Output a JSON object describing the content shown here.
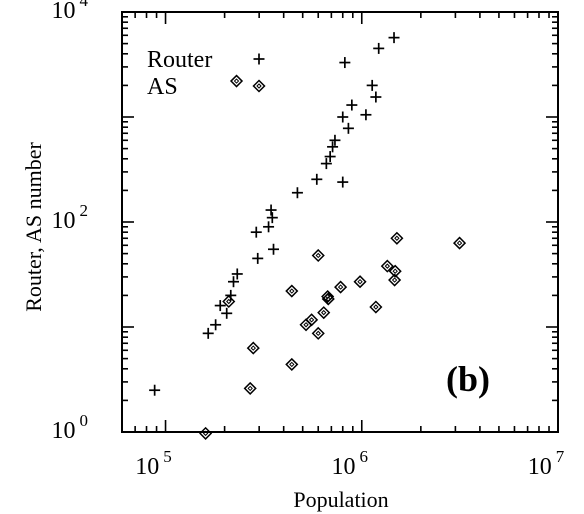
{
  "chart_data": {
    "type": "scatter",
    "panel_label": "(b)",
    "xlabel": "Population",
    "ylabel": "Router, AS number",
    "x_scale": "log",
    "y_scale": "log",
    "xlim": [
      60000,
      10000000
    ],
    "ylim": [
      1,
      10000
    ],
    "x_ticks": [
      {
        "value": 100000,
        "base": "10",
        "exp": "5"
      },
      {
        "value": 1000000,
        "base": "10",
        "exp": "6"
      },
      {
        "value": 10000000,
        "base": "10",
        "exp": "7"
      }
    ],
    "y_ticks": [
      {
        "value": 1,
        "base": "10",
        "exp": "0"
      },
      {
        "value": 100,
        "base": "10",
        "exp": "2"
      },
      {
        "value": 10000,
        "base": "10",
        "exp": "4"
      }
    ],
    "legend_position": "top-left",
    "series": [
      {
        "name": "Router",
        "marker": "plus",
        "points": [
          [
            88000,
            2.5
          ],
          [
            165000,
            8.7
          ],
          [
            180000,
            10.5
          ],
          [
            190000,
            16
          ],
          [
            205000,
            13.5
          ],
          [
            215000,
            20
          ],
          [
            222000,
            27
          ],
          [
            232000,
            32
          ],
          [
            290000,
            80
          ],
          [
            295000,
            45
          ],
          [
            335000,
            90
          ],
          [
            345000,
            130
          ],
          [
            350000,
            110
          ],
          [
            355000,
            55
          ],
          [
            470000,
            190
          ],
          [
            590000,
            255
          ],
          [
            660000,
            360
          ],
          [
            690000,
            420
          ],
          [
            710000,
            520
          ],
          [
            730000,
            600
          ],
          [
            800000,
            1000
          ],
          [
            800000,
            240
          ],
          [
            820000,
            3300
          ],
          [
            855000,
            780
          ],
          [
            890000,
            1300
          ],
          [
            1050000,
            1050
          ],
          [
            1130000,
            2000
          ],
          [
            1180000,
            1550
          ],
          [
            1220000,
            4500
          ],
          [
            1460000,
            5700
          ]
        ]
      },
      {
        "name": "AS",
        "marker": "diamond",
        "points": [
          [
            160000,
            0.97
          ],
          [
            210000,
            17.5
          ],
          [
            230000,
            2200
          ],
          [
            270000,
            2.6
          ],
          [
            280000,
            6.3
          ],
          [
            440000,
            4.4
          ],
          [
            440000,
            22
          ],
          [
            520000,
            10.5
          ],
          [
            555000,
            11.7
          ],
          [
            600000,
            8.7
          ],
          [
            600000,
            48
          ],
          [
            640000,
            13.7
          ],
          [
            670000,
            19.5
          ],
          [
            675000,
            18.5
          ],
          [
            780000,
            24
          ],
          [
            980000,
            27
          ],
          [
            1180000,
            15.5
          ],
          [
            1350000,
            38
          ],
          [
            1480000,
            34
          ],
          [
            1470000,
            28
          ],
          [
            1510000,
            70
          ],
          [
            3150000,
            63
          ]
        ]
      }
    ]
  }
}
